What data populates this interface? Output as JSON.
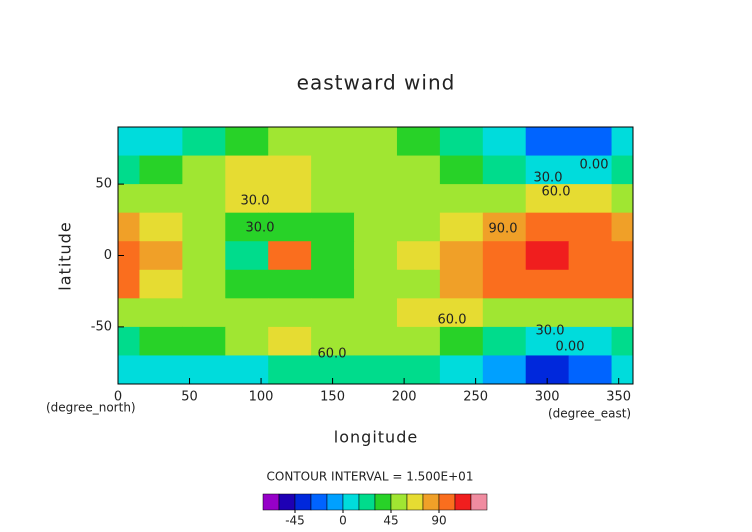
{
  "chart_data": {
    "type": "contour",
    "title": "eastward wind",
    "xlabel": "longitude",
    "ylabel": "latitude",
    "xunit": "(degree_east)",
    "yunit": "(degree_north)",
    "note": "CONTOUR INTERVAL = 1.500E+01",
    "x": [
      0,
      30,
      60,
      90,
      120,
      150,
      180,
      210,
      240,
      270,
      300,
      330,
      360
    ],
    "y": [
      80,
      60,
      40,
      20,
      0,
      -20,
      -40,
      -60,
      -80
    ],
    "z": [
      [
        10,
        10,
        20,
        40,
        50,
        50,
        45,
        40,
        20,
        0,
        -30,
        -30,
        10
      ],
      [
        25,
        35,
        55,
        60,
        60,
        55,
        50,
        50,
        35,
        20,
        0,
        0,
        25
      ],
      [
        50,
        50,
        55,
        65,
        60,
        50,
        55,
        55,
        55,
        55,
        60,
        60,
        50
      ],
      [
        75,
        70,
        50,
        35,
        40,
        35,
        55,
        55,
        70,
        80,
        90,
        90,
        75
      ],
      [
        95,
        75,
        45,
        20,
        95,
        35,
        50,
        65,
        75,
        95,
        105,
        100,
        95
      ],
      [
        90,
        70,
        45,
        30,
        35,
        30,
        55,
        55,
        75,
        95,
        100,
        95,
        90
      ],
      [
        50,
        45,
        50,
        55,
        50,
        55,
        55,
        60,
        60,
        55,
        55,
        55,
        50
      ],
      [
        25,
        30,
        40,
        55,
        65,
        55,
        45,
        50,
        35,
        20,
        5,
        5,
        25
      ],
      [
        5,
        5,
        5,
        10,
        20,
        25,
        20,
        15,
        10,
        -10,
        -40,
        -30,
        5
      ]
    ],
    "xlim": [
      0,
      360
    ],
    "ylim": [
      -90,
      90
    ],
    "xticks": [
      0,
      50,
      100,
      150,
      200,
      250,
      300,
      350
    ],
    "yticks": [
      -50,
      0,
      50
    ],
    "annotations": [
      "0.00",
      "30.0",
      "60.0",
      "90.0",
      "60.0",
      "30.0",
      "0.00",
      "30.0",
      "30.0",
      "60.0"
    ],
    "colorbar": {
      "levels": [
        -60,
        -45,
        -30,
        -15,
        0,
        15,
        30,
        45,
        60,
        75,
        90,
        105,
        120
      ],
      "colors": [
        "#9600c8",
        "#1e00b4",
        "#0028dc",
        "#0064ff",
        "#00a0ff",
        "#00dcdc",
        "#00dc8c",
        "#28d228",
        "#a0e632",
        "#e6dc32",
        "#f0a028",
        "#fa6e1e",
        "#f01e1e",
        "#f08ca0"
      ],
      "ticks": [
        -45,
        0,
        45,
        90
      ]
    }
  }
}
